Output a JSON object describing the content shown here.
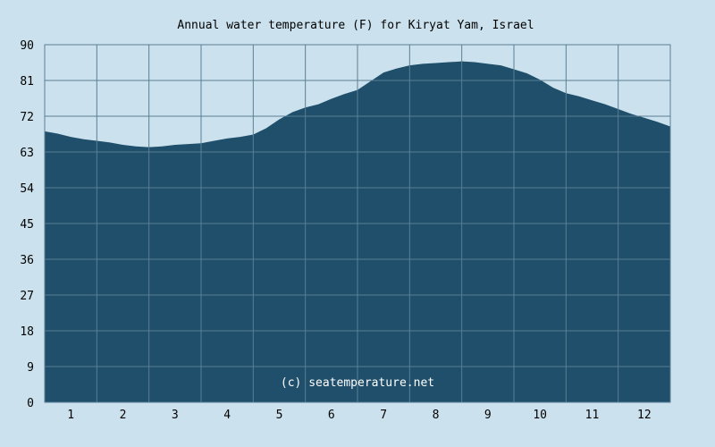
{
  "chart_data": {
    "type": "area",
    "title": "Annual water temperature (F) for Kiryat Yam, Israel",
    "xlabel": "",
    "ylabel": "",
    "x_ticks": [
      "1",
      "2",
      "3",
      "4",
      "5",
      "6",
      "7",
      "8",
      "9",
      "10",
      "11",
      "12"
    ],
    "y_ticks": [
      "0",
      "9",
      "18",
      "27",
      "36",
      "45",
      "54",
      "63",
      "72",
      "81",
      "90"
    ],
    "ylim": [
      0,
      90
    ],
    "xlim": [
      0.5,
      12.5
    ],
    "grid": true,
    "series": [
      {
        "x": [
          0.5,
          0.75,
          1.0,
          1.25,
          1.5,
          1.75,
          2.0,
          2.25,
          2.5,
          2.75,
          3.0,
          3.25,
          3.5,
          3.75,
          4.0,
          4.25,
          4.5,
          4.75,
          5.0,
          5.25,
          5.5,
          5.75,
          6.0,
          6.25,
          6.5,
          6.75,
          7.0,
          7.25,
          7.5,
          7.75,
          8.0,
          8.25,
          8.5,
          8.75,
          9.0,
          9.25,
          9.5,
          9.75,
          10.0,
          10.25,
          10.5,
          10.75,
          11.0,
          11.25,
          11.5,
          11.75,
          12.0,
          12.25,
          12.5
        ],
        "values": [
          68.2,
          67.6,
          66.8,
          66.2,
          65.8,
          65.4,
          64.8,
          64.4,
          64.2,
          64.4,
          64.8,
          65.0,
          65.2,
          65.8,
          66.4,
          66.8,
          67.4,
          69.0,
          71.2,
          73.0,
          74.2,
          75.0,
          76.4,
          77.6,
          78.6,
          80.8,
          83.0,
          84.0,
          84.8,
          85.2,
          85.4,
          85.6,
          85.8,
          85.6,
          85.2,
          84.8,
          83.8,
          82.8,
          81.2,
          79.2,
          77.8,
          77.0,
          76.0,
          75.0,
          73.8,
          72.6,
          71.6,
          70.6,
          69.4
        ]
      }
    ],
    "colors": {
      "background": "#cbe2ee",
      "area": "#1f4f6b",
      "grid": "#5a7f94",
      "plot_bg": "#cbe2ee"
    },
    "watermark": "(c) seatemperature.net"
  }
}
